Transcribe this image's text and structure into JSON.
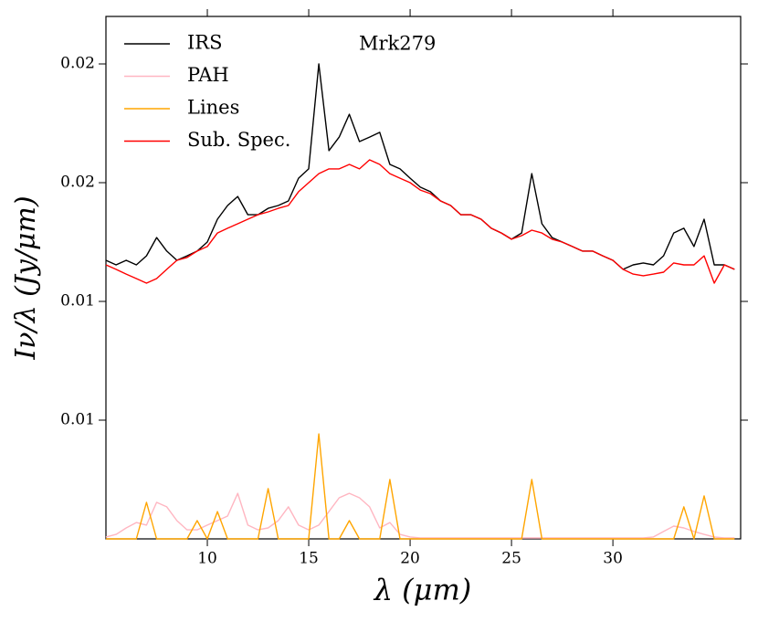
{
  "chart_data": {
    "type": "line",
    "annotation": "Mrk279",
    "xlabel": "λ (μm)",
    "ylabel": "Iν/λ (Jy/μm)",
    "x": [
      5,
      5.5,
      6,
      6.5,
      7,
      7.5,
      8,
      8.5,
      9,
      9.5,
      10,
      10.5,
      11,
      11.5,
      12,
      12.5,
      13,
      13.5,
      14,
      14.5,
      15,
      15.5,
      16,
      16.5,
      17,
      17.5,
      18,
      18.5,
      19,
      19.5,
      20,
      20.5,
      21,
      21.5,
      22,
      22.5,
      23,
      23.5,
      24,
      24.5,
      25,
      25.5,
      26,
      26.5,
      27,
      27.5,
      28,
      28.5,
      29,
      29.5,
      30,
      30.5,
      31,
      31.5,
      32,
      32.5,
      33,
      33.5,
      34,
      34.5,
      35,
      35.5,
      36
    ],
    "series": [
      {
        "name": "IRS",
        "color": "#000000",
        "values": [
          0.01173,
          0.01154,
          0.01173,
          0.01154,
          0.01192,
          0.01269,
          0.01212,
          0.01173,
          0.01192,
          0.01212,
          0.0125,
          0.01346,
          0.01404,
          0.01442,
          0.01365,
          0.01365,
          0.01392,
          0.01404,
          0.01423,
          0.01519,
          0.01558,
          0.02,
          0.01635,
          0.01692,
          0.01788,
          0.01673,
          0.01692,
          0.01712,
          0.01577,
          0.01558,
          0.01519,
          0.01481,
          0.01462,
          0.01423,
          0.01404,
          0.01365,
          0.01365,
          0.01346,
          0.01308,
          0.01288,
          0.01262,
          0.01288,
          0.01538,
          0.01327,
          0.01269,
          0.0125,
          0.01231,
          0.01212,
          0.01212,
          0.01192,
          0.01173,
          0.01135,
          0.01154,
          0.01162,
          0.01154,
          0.01192,
          0.01288,
          0.01308,
          0.01231,
          0.01346,
          0.01154,
          0.01154,
          0.01135
        ]
      },
      {
        "name": "PAH",
        "color": "#ffb6c1",
        "values": [
          8e-05,
          0.00019,
          0.00046,
          0.00069,
          0.00058,
          0.00154,
          0.00135,
          0.00077,
          0.00038,
          0.00038,
          0.00058,
          0.00077,
          0.00096,
          0.00192,
          0.00058,
          0.00038,
          0.00046,
          0.00077,
          0.00135,
          0.00058,
          0.00038,
          0.00058,
          0.00115,
          0.00173,
          0.00192,
          0.00173,
          0.00135,
          0.00046,
          0.00069,
          0.00019,
          8e-05,
          4e-05,
          4e-05,
          4e-05,
          4e-05,
          4e-05,
          4e-05,
          4e-05,
          4e-05,
          4e-05,
          4e-05,
          4e-05,
          4e-05,
          4e-05,
          4e-05,
          4e-05,
          4e-05,
          4e-05,
          4e-05,
          4e-05,
          4e-05,
          4e-05,
          4e-05,
          4e-05,
          8e-05,
          0.00031,
          0.00054,
          0.00046,
          0.00031,
          0.00019,
          8e-05,
          4e-05,
          4e-05
        ]
      },
      {
        "name": "Lines",
        "color": "#ffa500",
        "values": [
          0,
          0,
          0,
          0,
          0.00154,
          0,
          0,
          0,
          0,
          0.00077,
          0,
          0.00115,
          0,
          0,
          0,
          0,
          0.00212,
          0,
          0,
          0,
          0,
          0.00442,
          0,
          0,
          0.00077,
          0,
          0,
          0,
          0.0025,
          0,
          0,
          0,
          0,
          0,
          0,
          0,
          0,
          0,
          0,
          0,
          0,
          0,
          0.0025,
          0,
          0,
          0,
          0,
          0,
          0,
          0,
          0,
          0,
          0,
          0,
          0,
          0,
          0,
          0.00135,
          0,
          0.00181,
          0,
          0,
          0
        ]
      },
      {
        "name": "Sub. Spec.",
        "color": "#ff0000",
        "values": [
          0.01154,
          0.01135,
          0.01115,
          0.01096,
          0.01077,
          0.01096,
          0.01135,
          0.01173,
          0.01185,
          0.01212,
          0.01231,
          0.01288,
          0.01308,
          0.01327,
          0.01346,
          0.01365,
          0.01377,
          0.01392,
          0.01404,
          0.01462,
          0.015,
          0.01538,
          0.01558,
          0.01558,
          0.01577,
          0.01558,
          0.01596,
          0.01577,
          0.01538,
          0.01519,
          0.015,
          0.01469,
          0.01454,
          0.01423,
          0.01404,
          0.01365,
          0.01365,
          0.01346,
          0.01308,
          0.01288,
          0.01262,
          0.01277,
          0.013,
          0.01288,
          0.01262,
          0.0125,
          0.01231,
          0.01212,
          0.01212,
          0.01192,
          0.01173,
          0.01135,
          0.01115,
          0.01108,
          0.01115,
          0.01123,
          0.01162,
          0.01154,
          0.01154,
          0.01192,
          0.01077,
          0.01154,
          0.01135
        ]
      }
    ],
    "xlim": [
      5,
      36.3
    ],
    "xticks": [
      10,
      15,
      20,
      25,
      30
    ],
    "ylim": [
      0,
      0.022
    ],
    "yticks": [
      {
        "value": 0.005,
        "label": "0.01"
      },
      {
        "value": 0.01,
        "label": "0.01"
      },
      {
        "value": 0.015,
        "label": "0.02"
      },
      {
        "value": 0.02,
        "label": "0.02"
      }
    ],
    "legend": "upper left"
  }
}
